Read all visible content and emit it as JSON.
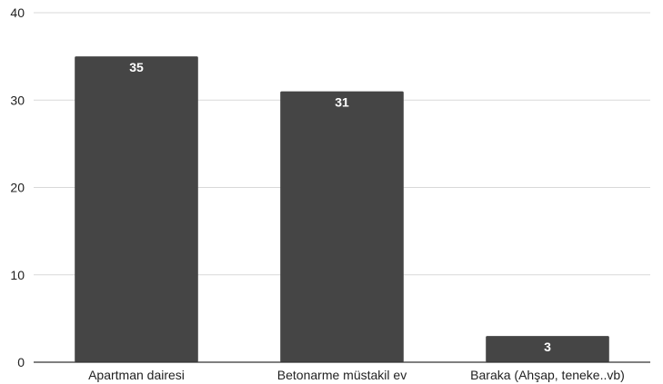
{
  "chart_data": {
    "type": "bar",
    "categories": [
      "Apartman dairesi",
      "Betonarme müstakil ev",
      "Baraka (Ahşap, teneke..vb)"
    ],
    "values": [
      35,
      31,
      3
    ],
    "data_labels": [
      "35",
      "31",
      "3"
    ],
    "title": "",
    "xlabel": "",
    "ylabel": "",
    "ylim": [
      0,
      40
    ],
    "yticks": [
      0,
      10,
      20,
      30,
      40
    ],
    "ytick_labels": [
      "0",
      "10",
      "20",
      "30",
      "40"
    ],
    "grid": true,
    "legend": "none",
    "bar_color": "#454545",
    "grid_color": "#d9d9d9",
    "axis_color": "#333333",
    "data_label_color": "#ffffff"
  }
}
